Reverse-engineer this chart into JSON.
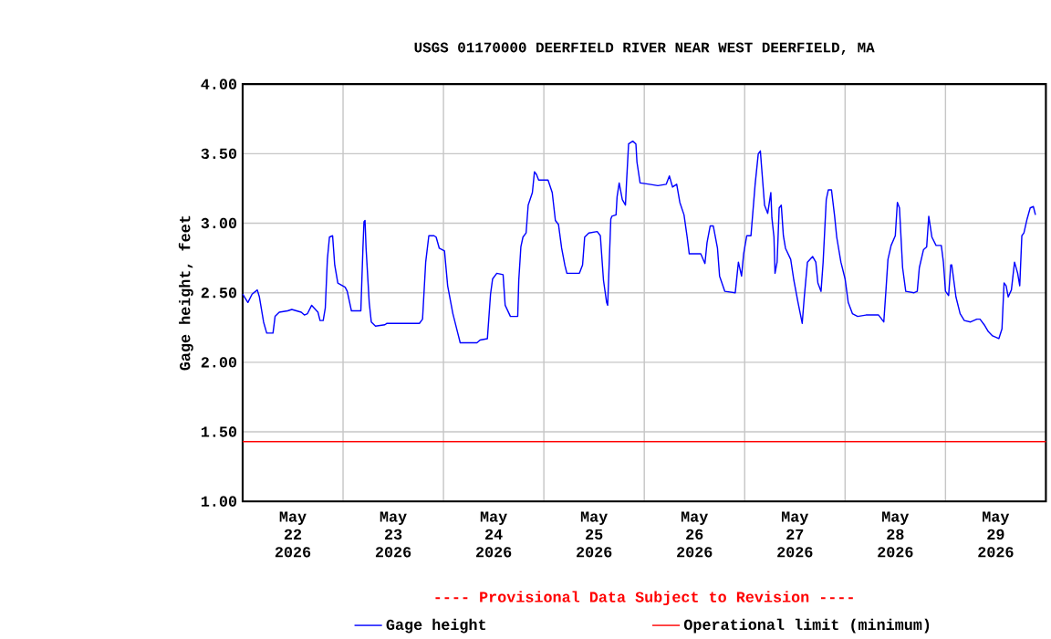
{
  "chart_data": {
    "type": "line",
    "title": "USGS 01170000 DEERFIELD RIVER NEAR WEST DEERFIELD, MA",
    "ylabel": "Gage height, feet",
    "annotations": [
      "---- Provisional Data Subject to Revision ----"
    ],
    "x": [
      "2026-05-22T00:00",
      "2026-05-22T01:15",
      "2026-05-22T02:15",
      "2026-05-22T03:30",
      "2026-05-22T04:00",
      "2026-05-22T05:00",
      "2026-05-22T05:45",
      "2026-05-22T07:15",
      "2026-05-22T07:45",
      "2026-05-22T08:45",
      "2026-05-22T10:45",
      "2026-05-22T11:45",
      "2026-05-22T14:00",
      "2026-05-22T14:45",
      "2026-05-22T15:30",
      "2026-05-22T16:30",
      "2026-05-22T18:00",
      "2026-05-22T18:30",
      "2026-05-22T19:15",
      "2026-05-22T19:45",
      "2026-05-22T20:15",
      "2026-05-22T20:45",
      "2026-05-22T21:30",
      "2026-05-22T22:00",
      "2026-05-22T22:45",
      "2026-05-23T00:30",
      "2026-05-23T01:00",
      "2026-05-23T02:00",
      "2026-05-23T04:15",
      "2026-05-23T04:45",
      "2026-05-23T05:00",
      "2026-05-23T05:15",
      "2026-05-23T05:30",
      "2026-05-23T06:15",
      "2026-05-23T06:45",
      "2026-05-23T07:45",
      "2026-05-23T10:00",
      "2026-05-23T10:30",
      "2026-05-23T18:15",
      "2026-05-23T19:00",
      "2026-05-23T19:45",
      "2026-05-23T20:30",
      "2026-05-23T21:45",
      "2026-05-23T22:15",
      "2026-05-23T23:00",
      "2026-05-24T00:15",
      "2026-05-24T01:00",
      "2026-05-24T02:15",
      "2026-05-24T03:30",
      "2026-05-24T04:00",
      "2026-05-24T08:00",
      "2026-05-24T08:45",
      "2026-05-24T10:30",
      "2026-05-24T11:15",
      "2026-05-24T11:45",
      "2026-05-24T12:45",
      "2026-05-24T14:15",
      "2026-05-24T14:45",
      "2026-05-24T16:00",
      "2026-05-24T17:45",
      "2026-05-24T18:00",
      "2026-05-24T18:30",
      "2026-05-24T19:00",
      "2026-05-24T19:45",
      "2026-05-24T20:15",
      "2026-05-24T21:15",
      "2026-05-24T21:45",
      "2026-05-24T22:15",
      "2026-05-24T22:45",
      "2026-05-25T01:00",
      "2026-05-25T02:00",
      "2026-05-25T02:45",
      "2026-05-25T03:30",
      "2026-05-25T04:15",
      "2026-05-25T05:00",
      "2026-05-25T05:30",
      "2026-05-25T08:30",
      "2026-05-25T09:15",
      "2026-05-25T09:45",
      "2026-05-25T10:45",
      "2026-05-25T12:45",
      "2026-05-25T13:30",
      "2026-05-25T14:15",
      "2026-05-25T15:00",
      "2026-05-25T15:15",
      "2026-05-25T16:00",
      "2026-05-25T16:15",
      "2026-05-25T17:15",
      "2026-05-25T17:30",
      "2026-05-25T18:00",
      "2026-05-25T18:45",
      "2026-05-25T19:30",
      "2026-05-25T19:45",
      "2026-05-25T20:15",
      "2026-05-25T21:15",
      "2026-05-25T22:00",
      "2026-05-25T22:15",
      "2026-05-25T23:00",
      "2026-05-26T01:15",
      "2026-05-26T03:15",
      "2026-05-26T05:15",
      "2026-05-26T06:00",
      "2026-05-26T06:45",
      "2026-05-26T07:45",
      "2026-05-26T08:30",
      "2026-05-26T09:30",
      "2026-05-26T10:15",
      "2026-05-26T10:45",
      "2026-05-26T13:30",
      "2026-05-26T14:30",
      "2026-05-26T15:00",
      "2026-05-26T15:45",
      "2026-05-26T16:30",
      "2026-05-26T17:30",
      "2026-05-26T18:00",
      "2026-05-26T19:15",
      "2026-05-26T21:45",
      "2026-05-26T22:30",
      "2026-05-26T23:15",
      "2026-05-26T23:45",
      "2026-05-27T00:30",
      "2026-05-27T01:30",
      "2026-05-27T02:30",
      "2026-05-27T03:15",
      "2026-05-27T03:45",
      "2026-05-27T04:00",
      "2026-05-27T04:45",
      "2026-05-27T05:30",
      "2026-05-27T06:00",
      "2026-05-27T06:15",
      "2026-05-27T06:30",
      "2026-05-27T07:00",
      "2026-05-27T07:15",
      "2026-05-27T07:45",
      "2026-05-27T08:15",
      "2026-05-27T08:45",
      "2026-05-27T09:15",
      "2026-05-27T09:45",
      "2026-05-27T11:00",
      "2026-05-27T11:45",
      "2026-05-27T12:45",
      "2026-05-27T13:45",
      "2026-05-27T14:15",
      "2026-05-27T15:00",
      "2026-05-27T16:15",
      "2026-05-27T17:00",
      "2026-05-27T17:30",
      "2026-05-27T18:15",
      "2026-05-27T18:45",
      "2026-05-27T19:30",
      "2026-05-27T20:00",
      "2026-05-27T20:45",
      "2026-05-27T21:30",
      "2026-05-27T22:00",
      "2026-05-27T23:00",
      "2026-05-28T00:00",
      "2026-05-28T00:45",
      "2026-05-28T01:45",
      "2026-05-28T03:00",
      "2026-05-28T05:00",
      "2026-05-28T08:00",
      "2026-05-28T08:45",
      "2026-05-28T09:15",
      "2026-05-28T09:45",
      "2026-05-28T10:15",
      "2026-05-28T11:00",
      "2026-05-28T12:00",
      "2026-05-28T12:30",
      "2026-05-28T13:00",
      "2026-05-28T13:45",
      "2026-05-28T14:30",
      "2026-05-28T16:30",
      "2026-05-28T17:15",
      "2026-05-28T17:45",
      "2026-05-28T18:45",
      "2026-05-28T19:30",
      "2026-05-28T20:00",
      "2026-05-28T20:45",
      "2026-05-28T21:45",
      "2026-05-28T23:00",
      "2026-05-28T23:30",
      "2026-05-29T00:00",
      "2026-05-29T00:45",
      "2026-05-29T01:15",
      "2026-05-29T01:30",
      "2026-05-29T02:30",
      "2026-05-29T03:30",
      "2026-05-29T04:30",
      "2026-05-29T06:00",
      "2026-05-29T07:30",
      "2026-05-29T08:15",
      "2026-05-29T09:15",
      "2026-05-29T10:15",
      "2026-05-29T11:15",
      "2026-05-29T12:45",
      "2026-05-29T13:30",
      "2026-05-29T14:00",
      "2026-05-29T14:30",
      "2026-05-29T15:00",
      "2026-05-29T15:45",
      "2026-05-29T16:30",
      "2026-05-29T17:15",
      "2026-05-29T17:45",
      "2026-05-29T18:15",
      "2026-05-29T18:45",
      "2026-05-29T19:30",
      "2026-05-29T20:15",
      "2026-05-29T21:00",
      "2026-05-29T21:30"
    ],
    "series": [
      {
        "name": "Gage height",
        "color": "#0000ff",
        "values": [
          2.49,
          2.43,
          2.49,
          2.52,
          2.47,
          2.29,
          2.21,
          2.21,
          2.33,
          2.36,
          2.37,
          2.38,
          2.36,
          2.34,
          2.35,
          2.41,
          2.36,
          2.3,
          2.3,
          2.39,
          2.74,
          2.9,
          2.91,
          2.7,
          2.57,
          2.54,
          2.51,
          2.37,
          2.37,
          2.82,
          3.01,
          3.02,
          2.82,
          2.43,
          2.29,
          2.26,
          2.27,
          2.28,
          2.28,
          2.31,
          2.72,
          2.91,
          2.91,
          2.9,
          2.82,
          2.8,
          2.55,
          2.35,
          2.2,
          2.14,
          2.14,
          2.16,
          2.17,
          2.49,
          2.6,
          2.64,
          2.63,
          2.41,
          2.33,
          2.33,
          2.59,
          2.83,
          2.9,
          2.93,
          3.13,
          3.22,
          3.37,
          3.35,
          3.31,
          3.31,
          3.22,
          3.02,
          2.99,
          2.82,
          2.7,
          2.64,
          2.64,
          2.7,
          2.9,
          2.93,
          2.94,
          2.91,
          2.59,
          2.43,
          2.41,
          3.03,
          3.05,
          3.06,
          3.19,
          3.29,
          3.17,
          3.13,
          3.29,
          3.57,
          3.59,
          3.57,
          3.44,
          3.29,
          3.28,
          3.27,
          3.28,
          3.34,
          3.26,
          3.28,
          3.15,
          3.06,
          2.9,
          2.78,
          2.78,
          2.71,
          2.86,
          2.98,
          2.98,
          2.82,
          2.62,
          2.51,
          2.5,
          2.72,
          2.62,
          2.78,
          2.91,
          2.91,
          3.28,
          3.5,
          3.52,
          3.42,
          3.13,
          3.07,
          3.17,
          3.22,
          3.04,
          2.9,
          2.64,
          2.72,
          3.11,
          3.13,
          2.91,
          2.82,
          2.74,
          2.59,
          2.43,
          2.28,
          2.47,
          2.72,
          2.76,
          2.72,
          2.57,
          2.51,
          2.72,
          3.17,
          3.24,
          3.24,
          3.05,
          2.9,
          2.72,
          2.6,
          2.43,
          2.35,
          2.33,
          2.34,
          2.34,
          2.31,
          2.29,
          2.51,
          2.74,
          2.84,
          2.91,
          3.15,
          3.11,
          2.68,
          2.51,
          2.5,
          2.51,
          2.68,
          2.81,
          2.83,
          3.05,
          2.9,
          2.84,
          2.84,
          2.72,
          2.51,
          2.48,
          2.7,
          2.7,
          2.47,
          2.35,
          2.3,
          2.29,
          2.31,
          2.31,
          2.27,
          2.22,
          2.19,
          2.17,
          2.24,
          2.57,
          2.55,
          2.47,
          2.52,
          2.72,
          2.64,
          2.55,
          2.91,
          2.93,
          3.03,
          3.11,
          3.12,
          3.06
        ]
      }
    ],
    "ref_lines": [
      {
        "axis": "y",
        "value": 1.43,
        "label": "Operational limit (minimum)",
        "color": "#ff0000"
      }
    ],
    "xlim": [
      "2026-05-22T00:00",
      "2026-05-30T00:00"
    ],
    "xticks": [
      {
        "value": "2026-05-22T00:00",
        "label": null
      },
      {
        "value": "2026-05-22T12:00",
        "label": "May 22 2026"
      },
      {
        "value": "2026-05-23T00:00",
        "label": null
      },
      {
        "value": "2026-05-23T12:00",
        "label": "May 23 2026"
      },
      {
        "value": "2026-05-24T00:00",
        "label": null
      },
      {
        "value": "2026-05-24T12:00",
        "label": "May 24 2026"
      },
      {
        "value": "2026-05-25T00:00",
        "label": null
      },
      {
        "value": "2026-05-25T12:00",
        "label": "May 25 2026"
      },
      {
        "value": "2026-05-26T00:00",
        "label": null
      },
      {
        "value": "2026-05-26T12:00",
        "label": "May 26 2026"
      },
      {
        "value": "2026-05-27T00:00",
        "label": null
      },
      {
        "value": "2026-05-27T12:00",
        "label": "May 27 2026"
      },
      {
        "value": "2026-05-28T00:00",
        "label": null
      },
      {
        "value": "2026-05-28T12:00",
        "label": "May 28 2026"
      },
      {
        "value": "2026-05-29T00:00",
        "label": null
      },
      {
        "value": "2026-05-29T12:00",
        "label": "May 29 2026"
      },
      {
        "value": "2026-05-30T00:00",
        "label": null
      }
    ],
    "ylim": [
      1,
      4
    ],
    "yticks": [
      {
        "value": 1,
        "label": "1.00"
      },
      {
        "value": 1.5,
        "label": "1.50"
      },
      {
        "value": 2,
        "label": "2.00"
      },
      {
        "value": 2.5,
        "label": "2.50"
      },
      {
        "value": 3,
        "label": "3.00"
      },
      {
        "value": 3.5,
        "label": "3.50"
      },
      {
        "value": 4,
        "label": "4.00"
      }
    ],
    "grid": true,
    "legend": "bottom"
  }
}
